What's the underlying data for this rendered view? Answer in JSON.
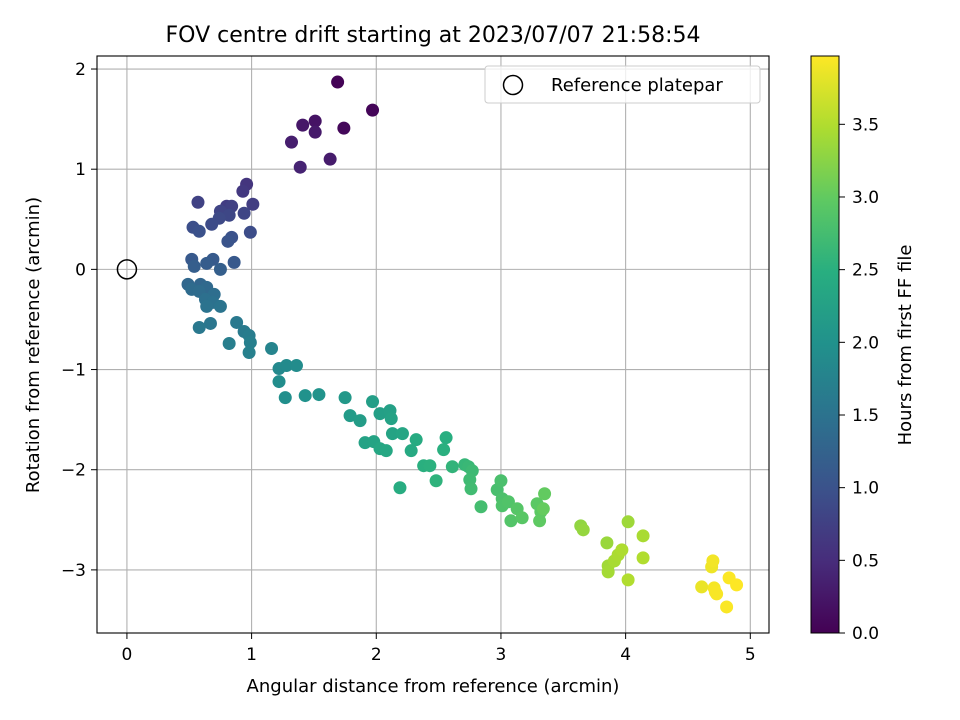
{
  "chart_data": {
    "type": "scatter",
    "title": "FOV centre drift starting at 2023/07/07 21:58:54",
    "xlabel": "Angular distance from reference (arcmin)",
    "ylabel": "Rotation from reference (arcmin)",
    "xlim": [
      -0.24,
      5.15
    ],
    "ylim": [
      -3.63,
      2.13
    ],
    "x_ticks": [
      0,
      1,
      2,
      3,
      4,
      5
    ],
    "y_ticks": [
      -3,
      -2,
      -1,
      0,
      1,
      2
    ],
    "grid": true,
    "legend": {
      "placement": "top-right",
      "entries": [
        "Reference platepar"
      ]
    },
    "reference_point": {
      "x": 0,
      "y": 0
    },
    "colorbar": {
      "label": "Hours from first FF file",
      "colormap": "viridis",
      "min": 0.0,
      "max": 3.97,
      "ticks": [
        "0.0",
        "0.5",
        "1.0",
        "1.5",
        "2.0",
        "2.5",
        "3.0",
        "3.5"
      ]
    },
    "points": [
      {
        "x": 1.69,
        "y": 1.87,
        "t": 0.02
      },
      {
        "x": 1.97,
        "y": 1.59,
        "t": 0.05
      },
      {
        "x": 1.74,
        "y": 1.41,
        "t": 0.08
      },
      {
        "x": 1.51,
        "y": 1.48,
        "t": 0.2
      },
      {
        "x": 1.41,
        "y": 1.44,
        "t": 0.25
      },
      {
        "x": 1.51,
        "y": 1.37,
        "t": 0.28
      },
      {
        "x": 1.32,
        "y": 1.27,
        "t": 0.33
      },
      {
        "x": 1.63,
        "y": 1.1,
        "t": 0.3
      },
      {
        "x": 1.39,
        "y": 1.02,
        "t": 0.38
      },
      {
        "x": 0.96,
        "y": 0.85,
        "t": 0.6
      },
      {
        "x": 0.93,
        "y": 0.78,
        "t": 0.65
      },
      {
        "x": 1.01,
        "y": 0.65,
        "t": 0.72
      },
      {
        "x": 0.57,
        "y": 0.67,
        "t": 0.78
      },
      {
        "x": 0.8,
        "y": 0.63,
        "t": 0.7
      },
      {
        "x": 0.84,
        "y": 0.63,
        "t": 0.75
      },
      {
        "x": 0.75,
        "y": 0.58,
        "t": 0.8
      },
      {
        "x": 0.94,
        "y": 0.56,
        "t": 0.82
      },
      {
        "x": 0.82,
        "y": 0.54,
        "t": 0.85
      },
      {
        "x": 0.74,
        "y": 0.51,
        "t": 0.88
      },
      {
        "x": 0.68,
        "y": 0.45,
        "t": 0.9
      },
      {
        "x": 0.53,
        "y": 0.42,
        "t": 0.95
      },
      {
        "x": 0.58,
        "y": 0.38,
        "t": 0.98
      },
      {
        "x": 0.99,
        "y": 0.37,
        "t": 0.92
      },
      {
        "x": 0.84,
        "y": 0.32,
        "t": 1.0
      },
      {
        "x": 0.81,
        "y": 0.28,
        "t": 1.02
      },
      {
        "x": 0.52,
        "y": 0.1,
        "t": 1.1
      },
      {
        "x": 0.69,
        "y": 0.1,
        "t": 1.12
      },
      {
        "x": 0.86,
        "y": 0.07,
        "t": 1.1
      },
      {
        "x": 0.64,
        "y": 0.06,
        "t": 1.15
      },
      {
        "x": 0.54,
        "y": 0.03,
        "t": 1.18
      },
      {
        "x": 0.75,
        "y": 0.0,
        "t": 1.2
      },
      {
        "x": 0.59,
        "y": -0.15,
        "t": 1.3
      },
      {
        "x": 0.49,
        "y": -0.15,
        "t": 1.32
      },
      {
        "x": 0.64,
        "y": -0.18,
        "t": 1.35
      },
      {
        "x": 0.52,
        "y": -0.2,
        "t": 1.38
      },
      {
        "x": 0.58,
        "y": -0.22,
        "t": 1.4
      },
      {
        "x": 0.7,
        "y": -0.25,
        "t": 1.42
      },
      {
        "x": 0.63,
        "y": -0.3,
        "t": 1.45
      },
      {
        "x": 0.69,
        "y": -0.33,
        "t": 1.48
      },
      {
        "x": 0.64,
        "y": -0.37,
        "t": 1.5
      },
      {
        "x": 0.75,
        "y": -0.37,
        "t": 1.52
      },
      {
        "x": 0.67,
        "y": -0.54,
        "t": 1.55
      },
      {
        "x": 0.88,
        "y": -0.53,
        "t": 1.6
      },
      {
        "x": 0.58,
        "y": -0.58,
        "t": 1.58
      },
      {
        "x": 0.94,
        "y": -0.62,
        "t": 1.62
      },
      {
        "x": 0.98,
        "y": -0.66,
        "t": 1.65
      },
      {
        "x": 0.82,
        "y": -0.74,
        "t": 1.68
      },
      {
        "x": 0.99,
        "y": -0.73,
        "t": 1.7
      },
      {
        "x": 0.98,
        "y": -0.83,
        "t": 1.72
      },
      {
        "x": 1.16,
        "y": -0.79,
        "t": 1.78
      },
      {
        "x": 1.22,
        "y": -0.99,
        "t": 1.85
      },
      {
        "x": 1.28,
        "y": -0.96,
        "t": 1.88
      },
      {
        "x": 1.36,
        "y": -0.96,
        "t": 1.9
      },
      {
        "x": 1.22,
        "y": -1.12,
        "t": 1.92
      },
      {
        "x": 1.27,
        "y": -1.28,
        "t": 1.95
      },
      {
        "x": 1.43,
        "y": -1.26,
        "t": 2.0
      },
      {
        "x": 1.54,
        "y": -1.25,
        "t": 2.02
      },
      {
        "x": 1.75,
        "y": -1.28,
        "t": 2.1
      },
      {
        "x": 1.79,
        "y": -1.46,
        "t": 2.15
      },
      {
        "x": 1.87,
        "y": -1.51,
        "t": 2.18
      },
      {
        "x": 1.97,
        "y": -1.32,
        "t": 2.2
      },
      {
        "x": 2.03,
        "y": -1.44,
        "t": 2.22
      },
      {
        "x": 2.11,
        "y": -1.41,
        "t": 2.25
      },
      {
        "x": 2.12,
        "y": -1.49,
        "t": 2.28
      },
      {
        "x": 2.13,
        "y": -1.64,
        "t": 2.3
      },
      {
        "x": 2.21,
        "y": -1.64,
        "t": 2.32
      },
      {
        "x": 1.91,
        "y": -1.73,
        "t": 2.28
      },
      {
        "x": 1.98,
        "y": -1.72,
        "t": 2.3
      },
      {
        "x": 2.03,
        "y": -1.79,
        "t": 2.34
      },
      {
        "x": 2.08,
        "y": -1.81,
        "t": 2.36
      },
      {
        "x": 2.19,
        "y": -2.18,
        "t": 2.45
      },
      {
        "x": 2.28,
        "y": -1.81,
        "t": 2.4
      },
      {
        "x": 2.32,
        "y": -1.7,
        "t": 2.42
      },
      {
        "x": 2.38,
        "y": -1.96,
        "t": 2.5
      },
      {
        "x": 2.43,
        "y": -1.96,
        "t": 2.52
      },
      {
        "x": 2.48,
        "y": -2.11,
        "t": 2.55
      },
      {
        "x": 2.54,
        "y": -1.8,
        "t": 2.5
      },
      {
        "x": 2.56,
        "y": -1.68,
        "t": 2.48
      },
      {
        "x": 2.61,
        "y": -1.97,
        "t": 2.58
      },
      {
        "x": 2.71,
        "y": -1.95,
        "t": 2.62
      },
      {
        "x": 2.74,
        "y": -1.97,
        "t": 2.65
      },
      {
        "x": 2.77,
        "y": -2.01,
        "t": 2.68
      },
      {
        "x": 2.75,
        "y": -2.1,
        "t": 2.7
      },
      {
        "x": 2.76,
        "y": -2.19,
        "t": 2.72
      },
      {
        "x": 2.84,
        "y": -2.37,
        "t": 2.75
      },
      {
        "x": 2.97,
        "y": -2.2,
        "t": 2.78
      },
      {
        "x": 3.0,
        "y": -2.11,
        "t": 2.8
      },
      {
        "x": 3.01,
        "y": -2.29,
        "t": 2.82
      },
      {
        "x": 3.01,
        "y": -2.36,
        "t": 2.84
      },
      {
        "x": 3.06,
        "y": -2.32,
        "t": 2.86
      },
      {
        "x": 3.08,
        "y": -2.51,
        "t": 2.88
      },
      {
        "x": 3.13,
        "y": -2.39,
        "t": 2.9
      },
      {
        "x": 3.17,
        "y": -2.48,
        "t": 2.92
      },
      {
        "x": 3.29,
        "y": -2.34,
        "t": 2.95
      },
      {
        "x": 3.32,
        "y": -2.42,
        "t": 2.96
      },
      {
        "x": 3.31,
        "y": -2.51,
        "t": 2.98
      },
      {
        "x": 3.35,
        "y": -2.24,
        "t": 3.0
      },
      {
        "x": 3.34,
        "y": -2.39,
        "t": 3.02
      },
      {
        "x": 3.64,
        "y": -2.56,
        "t": 3.3
      },
      {
        "x": 3.66,
        "y": -2.6,
        "t": 3.32
      },
      {
        "x": 3.85,
        "y": -2.73,
        "t": 3.35
      },
      {
        "x": 3.86,
        "y": -2.96,
        "t": 3.4
      },
      {
        "x": 3.86,
        "y": -3.02,
        "t": 3.42
      },
      {
        "x": 3.91,
        "y": -2.91,
        "t": 3.44
      },
      {
        "x": 3.94,
        "y": -2.85,
        "t": 3.46
      },
      {
        "x": 3.97,
        "y": -2.8,
        "t": 3.48
      },
      {
        "x": 4.02,
        "y": -2.52,
        "t": 3.38
      },
      {
        "x": 4.02,
        "y": -3.1,
        "t": 3.5
      },
      {
        "x": 4.14,
        "y": -2.66,
        "t": 3.45
      },
      {
        "x": 4.14,
        "y": -2.88,
        "t": 3.5
      },
      {
        "x": 4.61,
        "y": -3.17,
        "t": 3.85
      },
      {
        "x": 4.69,
        "y": -2.97,
        "t": 3.88
      },
      {
        "x": 4.7,
        "y": -2.91,
        "t": 3.9
      },
      {
        "x": 4.71,
        "y": -3.18,
        "t": 3.92
      },
      {
        "x": 4.72,
        "y": -3.22,
        "t": 3.93
      },
      {
        "x": 4.73,
        "y": -3.24,
        "t": 3.94
      },
      {
        "x": 4.81,
        "y": -3.37,
        "t": 3.95
      },
      {
        "x": 4.83,
        "y": -3.08,
        "t": 3.96
      },
      {
        "x": 4.89,
        "y": -3.15,
        "t": 3.97
      }
    ]
  }
}
